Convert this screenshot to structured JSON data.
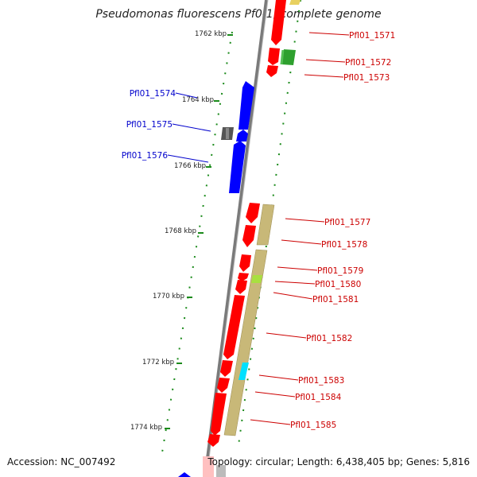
{
  "title": "Pseudomonas fluorescens Pf0-1, complete genome",
  "footer": {
    "accession": "Accession: NC_007492",
    "summary": "Topology: circular; Length: 6,438,405 bp; Genes: 5,816"
  },
  "colors": {
    "forward_gene": "#ff0000",
    "reverse_gene": "#0000ff",
    "backbone": "#888888",
    "tick": "#1a8a1a",
    "label_red": "#cc0000",
    "label_blue": "#0000cc",
    "khaki_band": "#c8b878",
    "light_green": "#a8e040",
    "dark_green": "#2ea02e",
    "cyan": "#00e0ff",
    "gray_block": "#555555"
  },
  "kbp_marks": [
    {
      "label": "1762 kbp"
    },
    {
      "label": "1764 kbp"
    },
    {
      "label": "1766 kbp"
    },
    {
      "label": "1768 kbp"
    },
    {
      "label": "1770 kbp"
    },
    {
      "label": "1772 kbp"
    },
    {
      "label": "1774 kbp"
    }
  ],
  "genes_right": [
    {
      "label": "Pfl01_1571"
    },
    {
      "label": "Pfl01_1572"
    },
    {
      "label": "Pfl01_1573"
    },
    {
      "label": "Pfl01_1577"
    },
    {
      "label": "Pfl01_1578"
    },
    {
      "label": "Pfl01_1579"
    },
    {
      "label": "Pfl01_1580"
    },
    {
      "label": "Pfl01_1581"
    },
    {
      "label": "Pfl01_1582"
    },
    {
      "label": "Pfl01_1583"
    },
    {
      "label": "Pfl01_1584"
    },
    {
      "label": "Pfl01_1585"
    }
  ],
  "genes_left": [
    {
      "label": "Pfl01_1574"
    },
    {
      "label": "Pfl01_1575"
    },
    {
      "label": "Pfl01_1576"
    }
  ]
}
